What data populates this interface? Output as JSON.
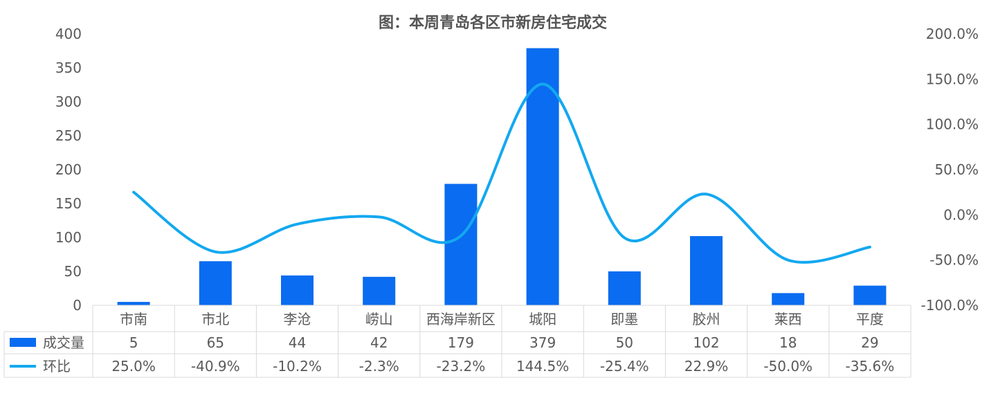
{
  "chart_data": {
    "type": "bar",
    "title": "图：本周青岛各区市新房住宅成交",
    "categories": [
      "市南",
      "市北",
      "李沧",
      "崂山",
      "西海岸新区",
      "城阳",
      "即墨",
      "胶州",
      "莱西",
      "平度"
    ],
    "y_left": {
      "ylim": [
        0,
        400
      ],
      "ticks": [
        "0",
        "50",
        "100",
        "150",
        "200",
        "250",
        "300",
        "350",
        "400"
      ]
    },
    "y_right": {
      "ylim": [
        -1.0,
        2.0
      ],
      "ticks": [
        "-100.0%",
        "-50.0%",
        "0.0%",
        "50.0%",
        "100.0%",
        "150.0%",
        "200.0%"
      ]
    },
    "series": [
      {
        "name": "成交量",
        "kind": "bar",
        "axis": "left",
        "color": "#0a6cf0",
        "values": [
          5,
          65,
          44,
          42,
          179,
          379,
          50,
          102,
          18,
          29
        ],
        "labels": [
          "5",
          "65",
          "44",
          "42",
          "179",
          "379",
          "50",
          "102",
          "18",
          "29"
        ]
      },
      {
        "name": "环比",
        "kind": "line",
        "axis": "right",
        "color": "#13a8f0",
        "values": [
          0.25,
          -0.409,
          -0.102,
          -0.023,
          -0.232,
          1.445,
          -0.254,
          0.229,
          -0.5,
          -0.356
        ],
        "labels": [
          "25.0%",
          "-40.9%",
          "-10.2%",
          "-2.3%",
          "-23.2%",
          "144.5%",
          "-25.4%",
          "22.9%",
          "-50.0%",
          "-35.6%"
        ]
      }
    ],
    "data_table": true,
    "legend": "data-table",
    "grid": false
  }
}
